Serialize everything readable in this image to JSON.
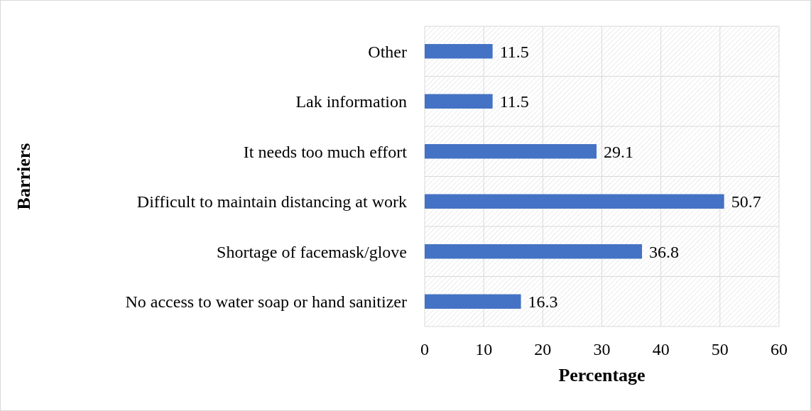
{
  "chart_data": {
    "type": "bar",
    "orientation": "horizontal",
    "xlabel": "Percentage",
    "ylabel": "Barriers",
    "categories": [
      "Other",
      "Lak information",
      "It needs too much effort",
      "Difficult to maintain distancing at work",
      "Shortage of facemask/glove",
      "No access to water soap or hand sanitizer"
    ],
    "values": [
      11.5,
      11.5,
      29.1,
      50.7,
      36.8,
      16.3
    ],
    "color": "#4472c4",
    "xlim": [
      0,
      60
    ],
    "xticks": [
      0,
      10,
      20,
      30,
      40,
      50,
      60
    ],
    "grid": true,
    "data_labels": true
  }
}
